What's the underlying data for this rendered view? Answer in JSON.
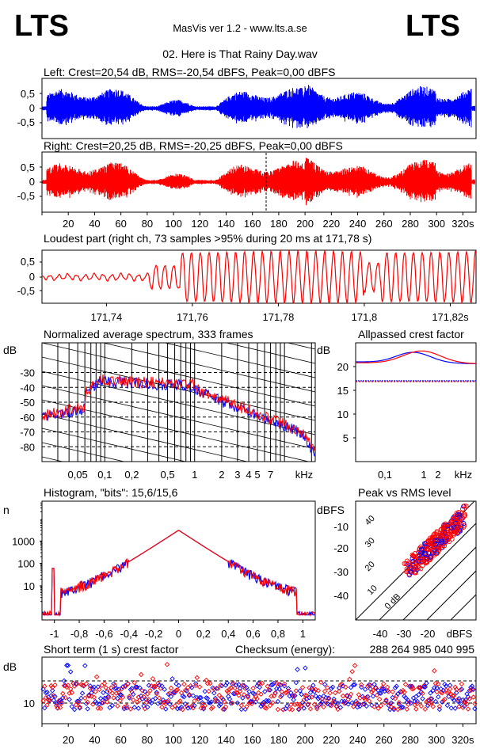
{
  "header": {
    "logo_left": "LTS",
    "logo_right": "LTS",
    "app_title": "MasVis ver 1.2 - www.lts.a.se",
    "file_title": "02. Here is That Rainy Day.wav"
  },
  "colors": {
    "left": "#0000ff",
    "right": "#ff0000",
    "grid": "#000000"
  },
  "chart_data": [
    {
      "type": "line",
      "id": "waveform_left",
      "title": "Left: Crest=20,54 dB, RMS=-20,54 dBFS, Peak=0,00 dBFS",
      "series": [
        {
          "name": "Left",
          "color": "#0000ff"
        }
      ],
      "ylim": [
        -1,
        1
      ],
      "yticks": [
        "0,5",
        "0",
        "-0,5"
      ],
      "xlim": [
        0,
        330
      ]
    },
    {
      "type": "line",
      "id": "waveform_right",
      "title": "Right: Crest=20,25 dB, RMS=-20,25 dBFS, Peak=0,00 dBFS",
      "series": [
        {
          "name": "Right",
          "color": "#ff0000"
        }
      ],
      "ylim": [
        -1,
        1
      ],
      "yticks": [
        "0,5",
        "0",
        "-0,5"
      ],
      "xlim": [
        0,
        330
      ],
      "xticks": [
        "20",
        "40",
        "60",
        "80",
        "100",
        "120",
        "140",
        "160",
        "180",
        "200",
        "220",
        "240",
        "260",
        "280",
        "300",
        "320s"
      ],
      "marker_x": 171.78
    },
    {
      "type": "line",
      "id": "loudest_part",
      "title": "Loudest part (right ch, 73 samples >95% during 20 ms at 171,78 s)",
      "ylim": [
        -1,
        1
      ],
      "yticks": [
        "0,5",
        "0",
        "-0,5"
      ],
      "xlim": [
        171.725,
        171.826
      ],
      "xticks": [
        "171,74",
        "171,76",
        "171,78",
        "171,8",
        "171,82s"
      ]
    },
    {
      "type": "line",
      "id": "spectrum",
      "title": "Normalized average spectrum, 333 frames",
      "ylabel": "dB",
      "yticks": [
        "-30",
        "-40",
        "-50",
        "-60",
        "-70",
        "-80"
      ],
      "xticks": [
        "0,05",
        "0,1",
        "0,2",
        "0,5",
        "1",
        "2",
        "3",
        "4",
        "5",
        "7",
        "kHz"
      ],
      "xlim": [
        0.02,
        22
      ],
      "ylim": [
        -90,
        -10
      ]
    },
    {
      "type": "line",
      "id": "allpassed_crest",
      "title": "Allpassed crest factor",
      "ylabel": "dB",
      "yticks": [
        "20",
        "15",
        "10",
        "5"
      ],
      "xticks": [
        "0,1",
        "1",
        "2",
        "kHz"
      ],
      "ylim": [
        0,
        25
      ]
    },
    {
      "type": "line",
      "id": "histogram",
      "title": "Histogram, \"bits\": 15,6/15,6",
      "ylabel": "n",
      "yticks": [
        "1000",
        "100",
        "10"
      ],
      "xticks": [
        "-1",
        "-0,8",
        "-0,6",
        "-0,4",
        "-0,2",
        "0",
        "0,2",
        "0,4",
        "0,6",
        "0,8",
        "1"
      ],
      "xlim": [
        -1.1,
        1.1
      ]
    },
    {
      "type": "scatter",
      "id": "peak_vs_rms",
      "title": "Peak vs RMS level",
      "ylabel": "dBFS",
      "xlabel": "dBFS",
      "yticks": [
        "-10",
        "-20",
        "-30",
        "-40"
      ],
      "xticks": [
        "-40",
        "-30",
        "-20"
      ],
      "diag_labels": [
        "0 dB",
        "10",
        "20",
        "30",
        "40"
      ]
    },
    {
      "type": "scatter",
      "id": "short_term_crest",
      "title": "Short term (1 s) crest factor",
      "checksum_label": "Checksum (energy):",
      "checksum_value": "288 264 985 040 995",
      "ylabel": "dB",
      "yticks": [
        "10"
      ],
      "xlim": [
        0,
        333
      ],
      "xticks": [
        "20",
        "40",
        "60",
        "80",
        "100",
        "120",
        "140",
        "160",
        "180",
        "200",
        "220",
        "240",
        "260",
        "280",
        "300",
        "320s"
      ]
    }
  ]
}
